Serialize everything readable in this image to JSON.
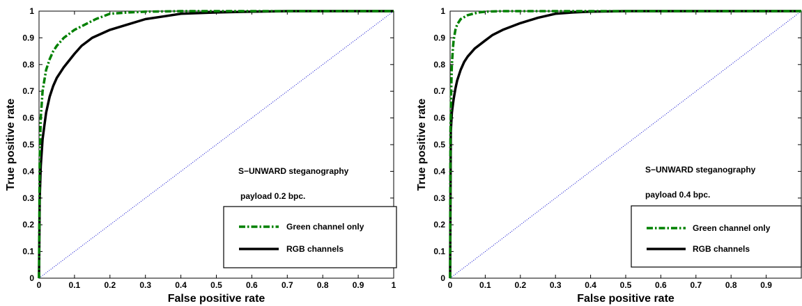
{
  "chart_data": [
    {
      "type": "line",
      "xlabel": "False positive rate",
      "ylabel": "True positive rate",
      "xlim": [
        0,
        1
      ],
      "ylim": [
        0,
        1
      ],
      "x_ticks": [
        "0",
        "0.1",
        "0.2",
        "0.3",
        "0.4",
        "0.5",
        "0.6",
        "0.7",
        "0.8",
        "0.9",
        "1"
      ],
      "y_ticks": [
        "0",
        "0.1",
        "0.2",
        "0.3",
        "0.4",
        "0.5",
        "0.6",
        "0.7",
        "0.8",
        "0.9",
        "1"
      ],
      "grid": false,
      "annotations": [
        "S−UNWARD steganography",
        "payload 0.2 bpc."
      ],
      "legend_position": "bottom-right",
      "series": [
        {
          "name": "Green channel only",
          "color": "#008000",
          "style": "dash-dot",
          "x": [
            0,
            0.002,
            0.005,
            0.01,
            0.015,
            0.02,
            0.03,
            0.04,
            0.05,
            0.07,
            0.1,
            0.13,
            0.16,
            0.2,
            0.25,
            0.3,
            0.4,
            0.5,
            0.7,
            1.0
          ],
          "y": [
            0,
            0.45,
            0.6,
            0.7,
            0.74,
            0.78,
            0.82,
            0.85,
            0.87,
            0.9,
            0.93,
            0.95,
            0.97,
            0.99,
            0.995,
            0.998,
            1.0,
            1.0,
            1.0,
            1.0
          ]
        },
        {
          "name": "RGB channels",
          "color": "#000000",
          "style": "solid",
          "x": [
            0,
            0.002,
            0.005,
            0.01,
            0.015,
            0.02,
            0.03,
            0.04,
            0.05,
            0.07,
            0.1,
            0.12,
            0.15,
            0.2,
            0.25,
            0.3,
            0.35,
            0.4,
            0.5,
            0.6,
            0.7,
            0.8,
            1.0
          ],
          "y": [
            0,
            0.3,
            0.42,
            0.52,
            0.57,
            0.62,
            0.68,
            0.72,
            0.75,
            0.79,
            0.84,
            0.87,
            0.9,
            0.93,
            0.95,
            0.97,
            0.98,
            0.99,
            0.995,
            0.998,
            1.0,
            1.0,
            1.0
          ]
        },
        {
          "name": "",
          "color": "#0000cc",
          "style": "dotted",
          "x": [
            0,
            1
          ],
          "y": [
            0,
            1
          ]
        }
      ]
    },
    {
      "type": "line",
      "xlabel": "False positive rate",
      "ylabel": "True positive rate",
      "xlim": [
        0,
        1
      ],
      "ylim": [
        0,
        1
      ],
      "x_ticks": [
        "0",
        "0.1",
        "0.2",
        "0.3",
        "0.4",
        "0.5",
        "0.6",
        "0.7",
        "0.8",
        "0.9",
        ""
      ],
      "y_ticks": [
        "0",
        "0.1",
        "0.2",
        "0.3",
        "0.4",
        "0.5",
        "0.6",
        "0.7",
        "0.8",
        "0.9",
        "1"
      ],
      "grid": false,
      "annotations": [
        "S−UNWARD steganography",
        "payload 0.4 bpc."
      ],
      "legend_position": "bottom-right",
      "series": [
        {
          "name": "Green channel only",
          "color": "#008000",
          "style": "dash-dot",
          "x": [
            0,
            0.001,
            0.003,
            0.005,
            0.008,
            0.01,
            0.015,
            0.02,
            0.03,
            0.05,
            0.08,
            0.1,
            0.15,
            0.2,
            0.3,
            1.0
          ],
          "y": [
            0,
            0.55,
            0.7,
            0.8,
            0.86,
            0.89,
            0.93,
            0.95,
            0.97,
            0.985,
            0.995,
            0.998,
            1.0,
            1.0,
            1.0,
            1.0
          ]
        },
        {
          "name": "RGB channels",
          "color": "#000000",
          "style": "solid",
          "x": [
            0,
            0.002,
            0.005,
            0.01,
            0.015,
            0.02,
            0.03,
            0.04,
            0.05,
            0.07,
            0.1,
            0.12,
            0.15,
            0.2,
            0.25,
            0.3,
            0.35,
            0.4,
            0.5,
            0.6,
            1.0
          ],
          "y": [
            0,
            0.55,
            0.62,
            0.67,
            0.71,
            0.74,
            0.78,
            0.81,
            0.83,
            0.86,
            0.89,
            0.91,
            0.93,
            0.955,
            0.975,
            0.99,
            0.995,
            0.998,
            1.0,
            1.0,
            1.0
          ]
        },
        {
          "name": "",
          "color": "#0000cc",
          "style": "dotted",
          "x": [
            0,
            1
          ],
          "y": [
            0,
            1
          ]
        }
      ]
    }
  ]
}
